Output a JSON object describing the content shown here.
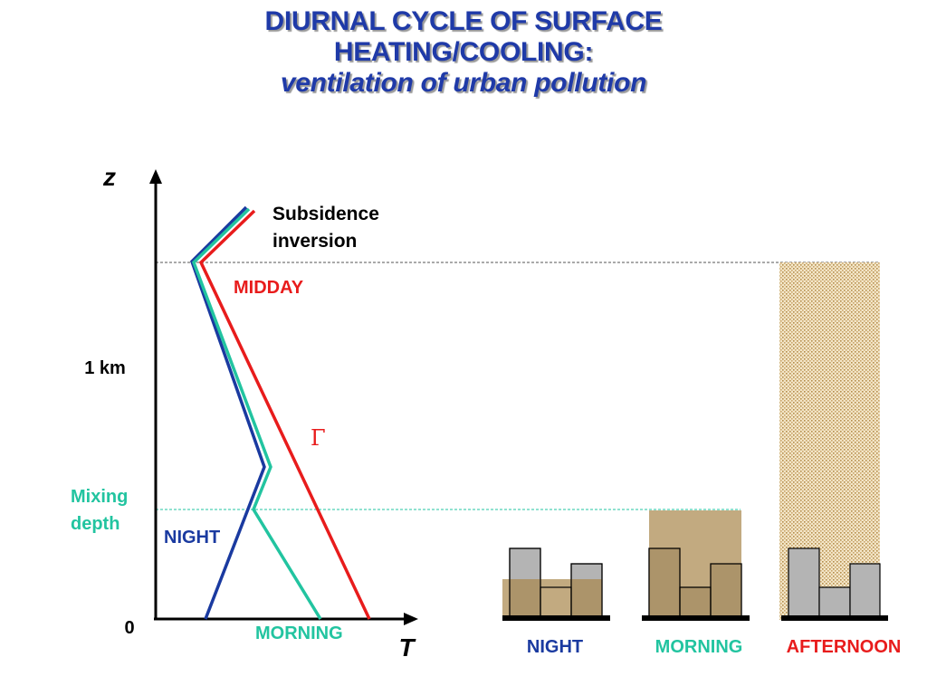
{
  "title": {
    "line1": "DIURNAL CYCLE OF SURFACE",
    "line2": "HEATING/COOLING:",
    "line3": "ventilation of urban pollution"
  },
  "axes": {
    "z_label": "z",
    "t_label": "T",
    "origin_label": "0",
    "km_label": "1 km"
  },
  "labels": {
    "subsidence_line1": "Subsidence",
    "subsidence_line2": "inversion",
    "midday": "MIDDAY",
    "gamma": "Γ",
    "mixing_line1": "Mixing",
    "mixing_line2": "depth",
    "night": "NIGHT",
    "morning": "MORNING"
  },
  "panels": [
    {
      "label": "NIGHT",
      "color": "#1a3aa0"
    },
    {
      "label": "MORNING",
      "color": "#22c4a0"
    },
    {
      "label": "AFTERNOON",
      "color": "#e81c1c"
    }
  ],
  "colors": {
    "night": "#1a3aa0",
    "morning": "#22c4a0",
    "midday": "#e81c1c",
    "title": "#1f3aa8",
    "pollution": "#c6a66e",
    "building": "#b4b4b4"
  }
}
